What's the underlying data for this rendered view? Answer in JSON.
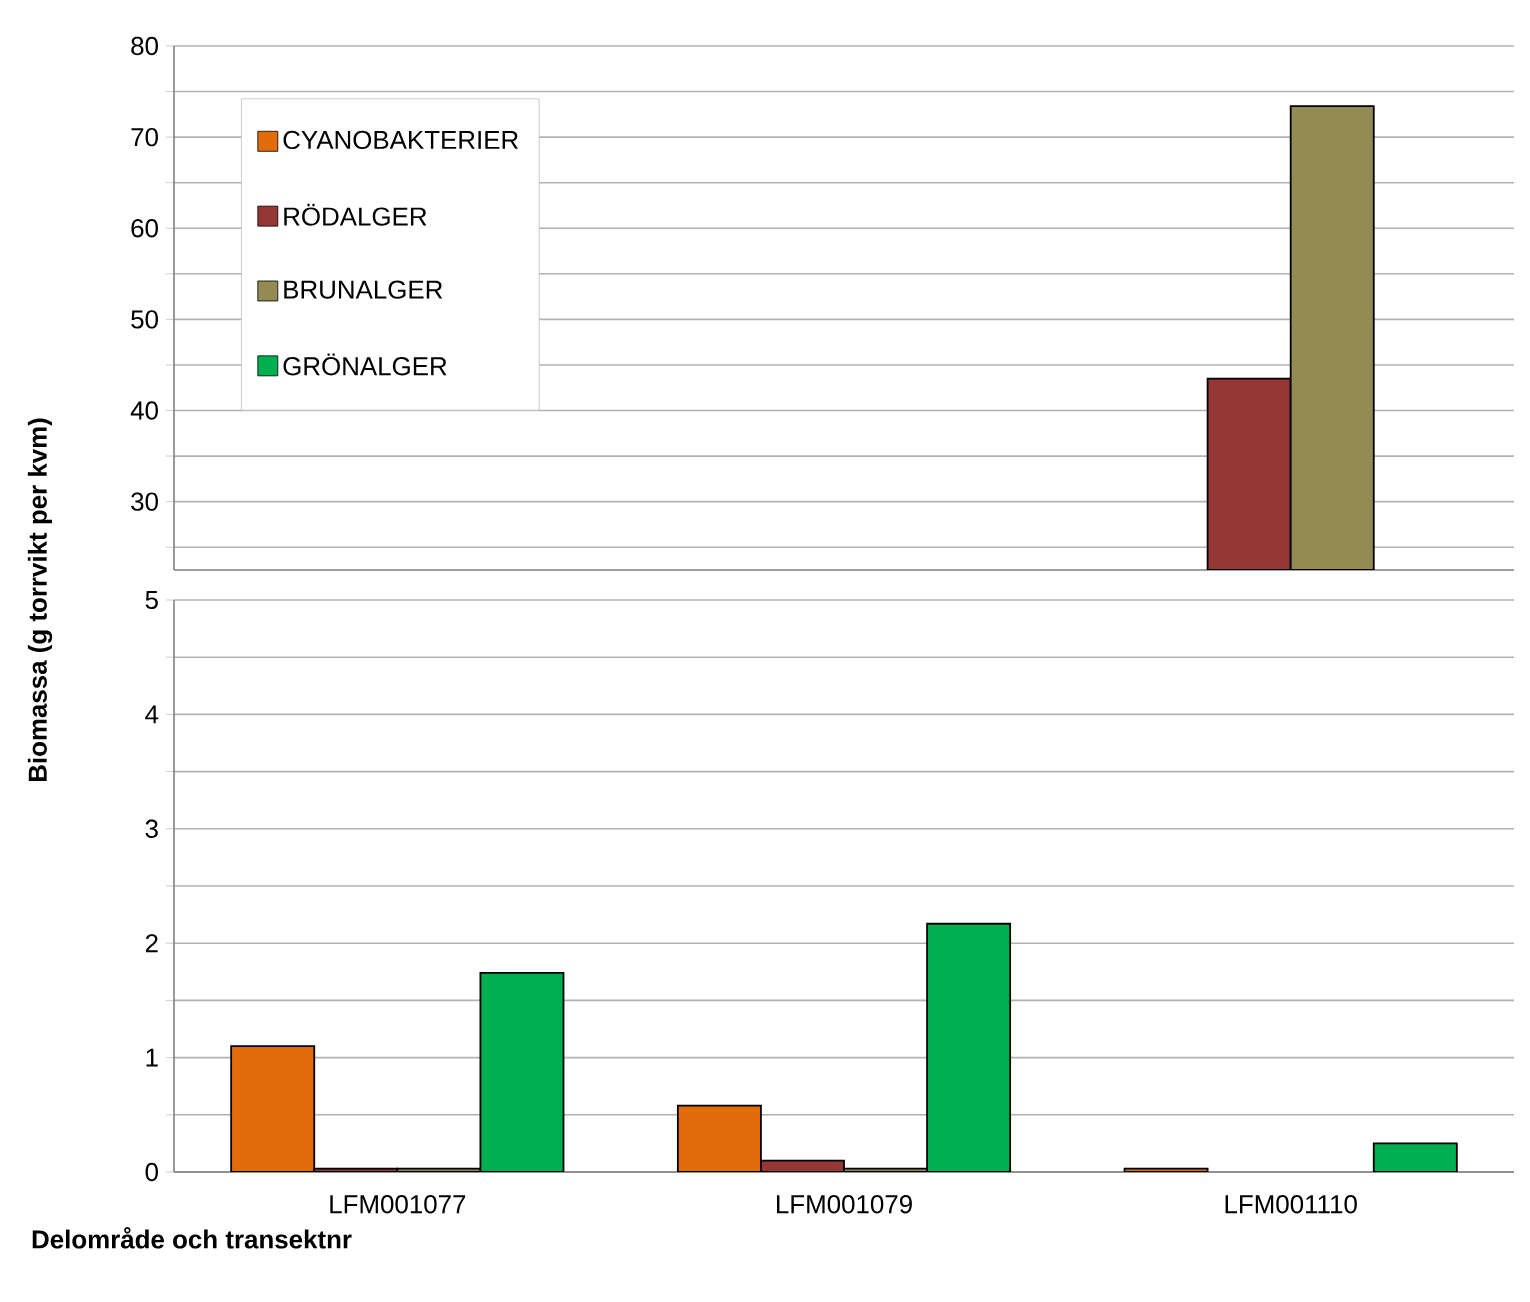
{
  "chart_data": [
    {
      "type": "bar",
      "categories": [
        null,
        null,
        null
      ],
      "tick_labels": "y",
      "legend": "top left",
      "grid": "y",
      "ylim": [
        22.5,
        80
      ],
      "yticks": [
        {
          "value": 25,
          "label": null
        },
        30,
        {
          "value": 35,
          "label": null
        },
        40,
        {
          "value": 45,
          "label": null
        },
        50,
        {
          "value": 55,
          "label": null
        },
        60,
        {
          "value": 65,
          "label": null
        },
        70,
        {
          "value": 75,
          "label": null
        },
        80
      ],
      "series": [
        {
          "name": "CYANOBAKTERIER",
          "color": "#e36c0a",
          "values": [
            null,
            null,
            null
          ]
        },
        {
          "name": "RÖDALGER",
          "color": "#953735",
          "values": [
            null,
            null,
            43.5
          ]
        },
        {
          "name": "BRUNALGER",
          "color": "#948a54",
          "values": [
            null,
            null,
            73.4
          ]
        },
        {
          "name": "GRÖNALGER",
          "color": "#00b050",
          "values": [
            null,
            null,
            null
          ]
        }
      ]
    },
    {
      "type": "bar",
      "categories": [
        "LFM001077",
        "LFM001079",
        "LFM001110"
      ],
      "grid": "y",
      "xlabel": "Delområde och transektnr",
      "ylabel": "Biomassa (g torrvikt per  kvm)",
      "ylim": [
        0,
        5
      ],
      "yticks": [
        0,
        {
          "value": 0.5,
          "label": null
        },
        1,
        {
          "value": 1.5,
          "label": null
        },
        2,
        {
          "value": 2.5,
          "label": null
        },
        3,
        {
          "value": 3.5,
          "label": null
        },
        4,
        {
          "value": 4.5,
          "label": null
        },
        5
      ],
      "series": [
        {
          "color": "#e36c0a",
          "values": [
            1.1,
            0.58,
            0.03
          ]
        },
        {
          "color": "#953735",
          "values": [
            0.03,
            0.1,
            null
          ]
        },
        {
          "color": "#948a54",
          "values": [
            0.03,
            0.03,
            null
          ]
        },
        {
          "color": "#00b050",
          "values": [
            1.74,
            2.17,
            0.25
          ]
        }
      ]
    }
  ]
}
